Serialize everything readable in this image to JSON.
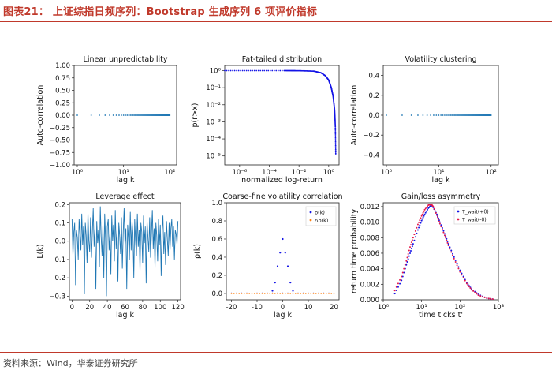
{
  "header": {
    "title": "图表21：  上证综指日频序列：Bootstrap 生成序列 6 项评价指标"
  },
  "footer": {
    "source": "资料来源：Wind，华泰证券研究所"
  },
  "colors": {
    "accent": "#c0392b",
    "blue": "#1f77b4",
    "dot_blue": "#1414e6",
    "orange": "#ff7f0e",
    "red": "#e6194b"
  },
  "chart_data": [
    {
      "type": "scatter",
      "title": "Linear unpredictability",
      "xlabel": "lag k",
      "ylabel": "Auto-correlation",
      "xscale": "log",
      "xlim": [
        1,
        120
      ],
      "ylim": [
        -1.0,
        1.0
      ],
      "yticks": [
        "−1.00",
        "−0.75",
        "−0.50",
        "−0.25",
        "0.00",
        "0.25",
        "0.50",
        "0.75",
        "1.00"
      ],
      "xticks": [
        "10⁰",
        "10¹",
        "10²"
      ],
      "series": [
        {
          "x_range": [
            1,
            100
          ],
          "y": 0.0
        }
      ]
    },
    {
      "type": "scatter",
      "title": "Fat-tailed distribution",
      "xlabel": "normalized log-return",
      "ylabel": "p(r>x)",
      "xscale": "log",
      "yscale": "log",
      "xlim": [
        1e-07,
        5
      ],
      "ylim": [
        3e-06,
        2
      ],
      "xticks": [
        "10⁻⁶",
        "10⁻⁴",
        "10⁻²",
        "10⁰"
      ],
      "yticks": [
        "10⁰",
        "10⁻¹",
        "10⁻²",
        "10⁻³",
        "10⁻⁴",
        "10⁻⁵"
      ],
      "series": [
        {
          "points": [
            [
              1e-07,
              1.0
            ],
            [
              0.001,
              0.999
            ],
            [
              0.01,
              0.99
            ],
            [
              0.1,
              0.93
            ],
            [
              0.3,
              0.75
            ],
            [
              0.6,
              0.5
            ],
            [
              1.0,
              0.28
            ],
            [
              1.5,
              0.1
            ],
            [
              2.0,
              0.03
            ],
            [
              2.5,
              0.005
            ],
            [
              2.8,
              0.0005
            ],
            [
              3.0,
              1e-05
            ]
          ]
        }
      ]
    },
    {
      "type": "scatter",
      "title": "Volatility clustering",
      "xlabel": "lag k",
      "ylabel": "Auto-correlation",
      "xscale": "log",
      "xlim": [
        1,
        120
      ],
      "ylim": [
        -0.5,
        0.5
      ],
      "yticks": [
        "−0.4",
        "−0.2",
        "0.0",
        "0.2",
        "0.4"
      ],
      "xticks": [
        "10⁰",
        "10¹",
        "10²"
      ],
      "series": [
        {
          "x_range": [
            1,
            100
          ],
          "y": 0.0
        }
      ]
    },
    {
      "type": "line",
      "title": "Leverage effect",
      "xlabel": "lag k",
      "ylabel": "L(k)",
      "xlim": [
        -3,
        123
      ],
      "ylim": [
        -0.32,
        0.21
      ],
      "xticks": [
        0,
        20,
        40,
        60,
        80,
        100,
        120
      ],
      "yticks": [
        "0.2",
        "0.1",
        "0.0",
        "−0.1",
        "−0.2",
        "−0.3"
      ],
      "series": [
        {
          "values": [
            0.12,
            -0.08,
            0.05,
            0.1,
            -0.24,
            0.06,
            0.02,
            -0.1,
            0.12,
            0.04,
            -0.05,
            0.15,
            -0.02,
            0.08,
            -0.29,
            0.1,
            0.03,
            -0.12,
            0.16,
            0.0,
            -0.06,
            0.13,
            -0.09,
            0.05,
            0.18,
            -0.03,
            0.07,
            -0.26,
            0.11,
            -0.01,
            0.06,
            -0.14,
            0.19,
            0.02,
            -0.08,
            0.1,
            -0.2,
            0.15,
            0.01,
            -0.3,
            0.08,
            0.12,
            -0.05,
            0.04,
            -0.18,
            0.14,
            0.0,
            0.09,
            -0.11,
            0.17,
            -0.04,
            0.06,
            -0.22,
            0.1,
            0.03,
            -0.07,
            0.13,
            -0.15,
            0.05,
            0.18,
            -0.02,
            0.07,
            -0.26,
            0.09,
            0.01,
            -0.1,
            0.16,
            -0.05,
            0.11,
            0.04,
            -0.2,
            0.12,
            0.0,
            -0.08,
            0.15,
            -0.03,
            0.06,
            -0.17,
            0.1,
            0.05,
            -0.12,
            0.14,
            -0.01,
            0.08,
            -0.23,
            0.11,
            0.02,
            -0.06,
            0.13,
            -0.09,
            0.04,
            0.17,
            -0.04,
            0.07,
            -0.15,
            0.1,
            0.03,
            -0.11,
            0.12,
            -0.02,
            0.09,
            -0.19,
            0.06,
            0.14,
            -0.07,
            0.05,
            -0.13,
            0.11,
            0.01,
            -0.08,
            0.1,
            -0.05,
            0.07,
            0.12,
            -0.03,
            0.08,
            -0.1,
            0.06,
            0.04,
            -0.02,
            0.11
          ]
        }
      ]
    },
    {
      "type": "scatter",
      "title": "Coarse-fine volatility correlation",
      "xlabel": "lag k",
      "ylabel": "ρ(k)",
      "xlim": [
        -22,
        22
      ],
      "ylim": [
        -0.07,
        1.0
      ],
      "xticks": [
        -20,
        -10,
        0,
        10,
        20
      ],
      "yticks": [
        "1.0",
        "0.8",
        "0.6",
        "0.4",
        "0.2",
        "0.0"
      ],
      "legend": "top-right",
      "series": [
        {
          "name": "ρ(k)",
          "x": [
            -4,
            -3,
            -2,
            -1,
            0,
            1,
            2,
            3,
            4
          ],
          "y": [
            0.03,
            0.12,
            0.3,
            0.45,
            0.6,
            0.45,
            0.3,
            0.12,
            0.03
          ]
        },
        {
          "name": "Δρ(k)",
          "x": [
            -20,
            -15,
            -10,
            -5,
            0,
            5,
            10,
            15,
            20
          ],
          "y": [
            0.0,
            0.0,
            0.0,
            0.0,
            0.0,
            0.0,
            0.0,
            0.0,
            0.0
          ]
        }
      ]
    },
    {
      "type": "scatter",
      "title": "Gain/loss asymmetry",
      "xlabel": "time ticks t'",
      "ylabel": "return time probability",
      "xscale": "log",
      "xlim": [
        1,
        1000
      ],
      "ylim": [
        0,
        0.0125
      ],
      "xticks": [
        "10⁰",
        "10¹",
        "10²",
        "10³"
      ],
      "yticks": [
        "0.012",
        "0.010",
        "0.008",
        "0.006",
        "0.004",
        "0.002",
        "0.000"
      ],
      "legend": "top-right",
      "series": [
        {
          "name": "T_wait(+θ)",
          "x": [
            2,
            3,
            4,
            5,
            6,
            8,
            10,
            12,
            15,
            18,
            20,
            25,
            30,
            40,
            50,
            70,
            100,
            150,
            200,
            300,
            500,
            800
          ],
          "y": [
            0.0008,
            0.0025,
            0.0045,
            0.006,
            0.0072,
            0.009,
            0.0102,
            0.011,
            0.0118,
            0.0122,
            0.0119,
            0.011,
            0.01,
            0.0085,
            0.0072,
            0.0055,
            0.0038,
            0.0022,
            0.0014,
            0.0007,
            0.0002,
            5e-05
          ]
        },
        {
          "name": "T_wait(-θ)",
          "x": [
            2,
            3,
            4,
            5,
            6,
            8,
            10,
            12,
            15,
            18,
            20,
            25,
            30,
            40,
            50,
            70,
            100,
            150,
            200,
            300,
            500,
            800
          ],
          "y": [
            0.0012,
            0.003,
            0.005,
            0.0068,
            0.008,
            0.0097,
            0.0108,
            0.0116,
            0.0122,
            0.0123,
            0.012,
            0.0109,
            0.0098,
            0.0083,
            0.007,
            0.0053,
            0.0036,
            0.0021,
            0.0013,
            0.0006,
            0.0002,
            5e-05
          ]
        }
      ]
    }
  ]
}
